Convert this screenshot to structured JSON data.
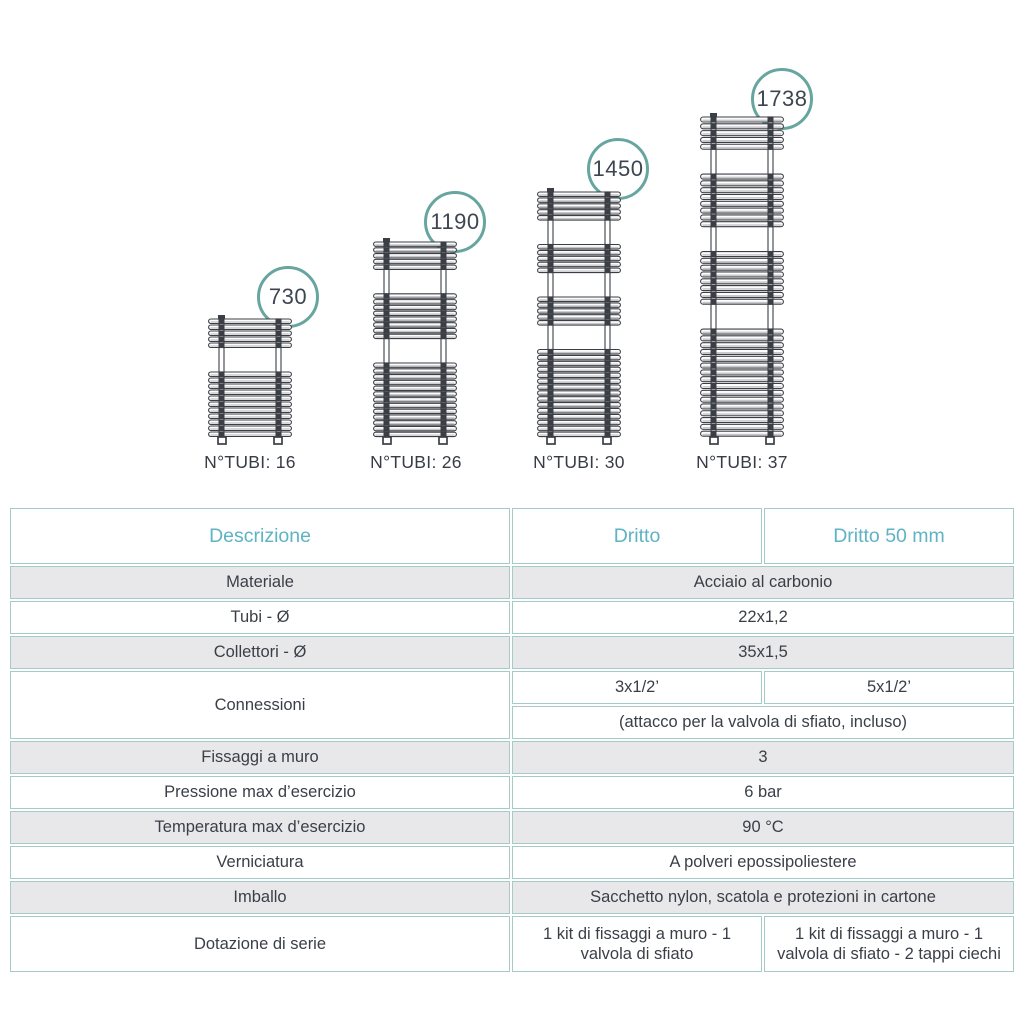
{
  "colors": {
    "accent_teal_text": "#5fb3c4",
    "circle_border": "#67a6a0",
    "table_border": "#a6cac8",
    "row_shade": "#e8e8ea",
    "text_dark": "#3a3f47",
    "line_color": "#3b3f45"
  },
  "diagram": {
    "radiators": [
      {
        "height_mm": "730",
        "tubes_label": "N°TUBI: 16",
        "tube_groups": [
          5,
          11
        ]
      },
      {
        "height_mm": "1190",
        "tubes_label": "N°TUBI: 26",
        "tube_groups": [
          5,
          8,
          13
        ]
      },
      {
        "height_mm": "1450",
        "tubes_label": "N°TUBI: 30",
        "tube_groups": [
          5,
          5,
          5,
          15
        ]
      },
      {
        "height_mm": "1738",
        "tubes_label": "N°TUBI: 37",
        "tube_groups": [
          5,
          8,
          8,
          16
        ]
      }
    ]
  },
  "table": {
    "headers": [
      "Descrizione",
      "Dritto",
      "Dritto 50 mm"
    ],
    "rows": [
      {
        "label": "Materiale",
        "value": "Acciaio al carbonio",
        "shade": true
      },
      {
        "label": "Tubi - Ø",
        "value": "22x1,2",
        "shade": false
      },
      {
        "label": "Collettori - Ø",
        "value": "35x1,5",
        "shade": true
      },
      {
        "label": "Connessioni",
        "dritto": "3x1/2’",
        "dritto50": "5x1/2’",
        "sub": "(attacco per la valvola di sfiato, incluso)",
        "shade": false
      },
      {
        "label": "Fissaggi a muro",
        "value": "3",
        "shade": true
      },
      {
        "label": "Pressione max d’esercizio",
        "value": "6 bar",
        "shade": false
      },
      {
        "label": "Temperatura max d’esercizio",
        "value": "90 °C",
        "shade": true
      },
      {
        "label": "Verniciatura",
        "value": "A polveri epossipoliestere",
        "shade": false
      },
      {
        "label": "Imballo",
        "value": "Sacchetto nylon, scatola e protezioni in cartone",
        "shade": true
      },
      {
        "label": "Dotazione di serie",
        "dritto": "1 kit di fissaggi a muro - 1 valvola di sfiato",
        "dritto50": "1 kit di fissaggi a muro - 1 valvola di sfiato  - 2 tappi ciechi",
        "shade": false
      }
    ]
  }
}
